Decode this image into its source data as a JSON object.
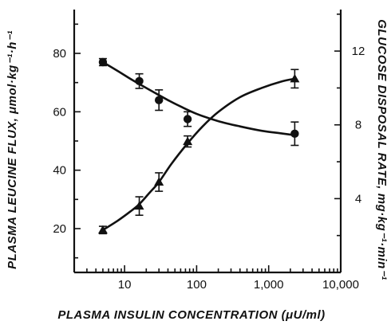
{
  "chart_data": {
    "type": "scatter",
    "title": "",
    "xlabel": "PLASMA INSULIN CONCENTRATION (μU/ml)",
    "ylabel_left": "PLASMA LEUCINE FLUX, μmol·kg⁻¹·h⁻¹",
    "ylabel_right": "GLUCOSE DISPOSAL RATE, mg·kg⁻¹·min⁻¹",
    "xscale": "log",
    "xlim": [
      2,
      10000
    ],
    "ylim_left": [
      5,
      95
    ],
    "ylim_right": [
      0,
      14.25
    ],
    "x_ticks": [
      10,
      100,
      1000,
      10000
    ],
    "x_tick_labels": [
      "10",
      "100",
      "1,000",
      "10,000"
    ],
    "y_left_ticks": [
      20,
      40,
      60,
      80
    ],
    "y_left_tick_labels": [
      "20",
      "40",
      "60",
      "80"
    ],
    "y_right_ticks": [
      4,
      8,
      12
    ],
    "y_right_tick_labels": [
      "4",
      "8",
      "12"
    ],
    "grid": false,
    "series": [
      {
        "marker": "circle",
        "axis": "left",
        "x": [
          5,
          16,
          30,
          75,
          2300
        ],
        "y": [
          77,
          70.5,
          64,
          57.5,
          52.5
        ],
        "err": [
          1.2,
          2.5,
          3.5,
          2.5,
          4
        ],
        "curve_x": [
          5,
          8,
          12,
          16,
          25,
          40,
          60,
          100,
          200,
          400,
          800,
          1500,
          2300
        ],
        "curve_y": [
          77,
          74,
          71.3,
          69.5,
          66.8,
          64,
          61.8,
          59.3,
          56.8,
          55,
          53.5,
          52.6,
          52
        ]
      },
      {
        "marker": "triangle",
        "axis": "right",
        "x": [
          5,
          16,
          30,
          75,
          2300
        ],
        "y": [
          2.3,
          3.6,
          4.9,
          7.1,
          10.5
        ],
        "err": [
          0.2,
          0.5,
          0.5,
          0.3,
          0.5
        ],
        "curve_x": [
          5,
          8,
          12,
          16,
          22,
          30,
          45,
          75,
          120,
          200,
          400,
          800,
          1500,
          2300
        ],
        "curve_y": [
          2.3,
          2.8,
          3.3,
          3.7,
          4.3,
          4.9,
          5.9,
          7.0,
          7.9,
          8.7,
          9.5,
          10.0,
          10.35,
          10.5
        ]
      }
    ]
  }
}
